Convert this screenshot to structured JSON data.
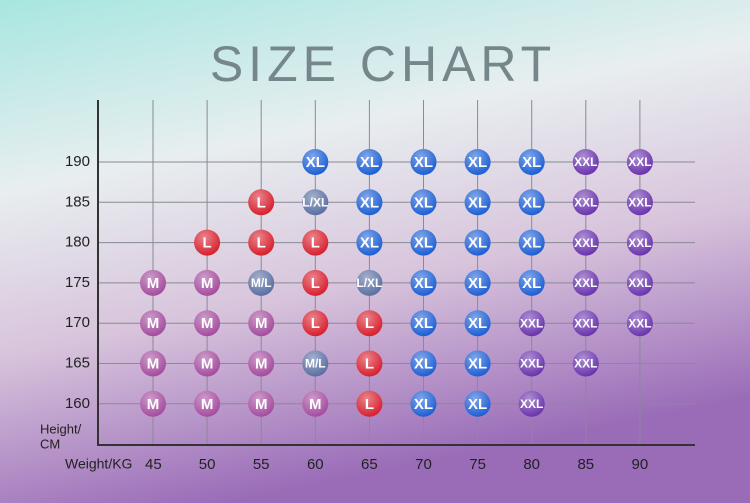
{
  "title": "SIZE CHART",
  "y_label": [
    "Height/",
    "CM"
  ],
  "x_label": "Weight/KG",
  "columns": [
    45,
    50,
    55,
    60,
    65,
    70,
    75,
    80,
    85,
    90
  ],
  "rows": [
    {
      "height": 190,
      "sizes": [
        null,
        null,
        null,
        "XL",
        "XL",
        "XL",
        "XL",
        "XL",
        "XXL",
        "XXL"
      ]
    },
    {
      "height": 185,
      "sizes": [
        null,
        null,
        "L",
        "L/XL",
        "XL",
        "XL",
        "XL",
        "XL",
        "XXL",
        "XXL"
      ]
    },
    {
      "height": 180,
      "sizes": [
        null,
        "L",
        "L",
        "L",
        "XL",
        "XL",
        "XL",
        "XL",
        "XXL",
        "XXL"
      ]
    },
    {
      "height": 175,
      "sizes": [
        "M",
        "M",
        "M/L",
        "L",
        "L/XL",
        "XL",
        "XL",
        "XL",
        "XXL",
        "XXL"
      ]
    },
    {
      "height": 170,
      "sizes": [
        "M",
        "M",
        "M",
        "L",
        "L",
        "XL",
        "XL",
        "XXL",
        "XXL",
        "XXL"
      ]
    },
    {
      "height": 165,
      "sizes": [
        "M",
        "M",
        "M",
        "M/L",
        "L",
        "XL",
        "XL",
        "XXL",
        "XXL",
        null
      ]
    },
    {
      "height": 160,
      "sizes": [
        "M",
        "M",
        "M",
        "M",
        "L",
        "XL",
        "XL",
        "XXL",
        null,
        null
      ]
    }
  ]
}
